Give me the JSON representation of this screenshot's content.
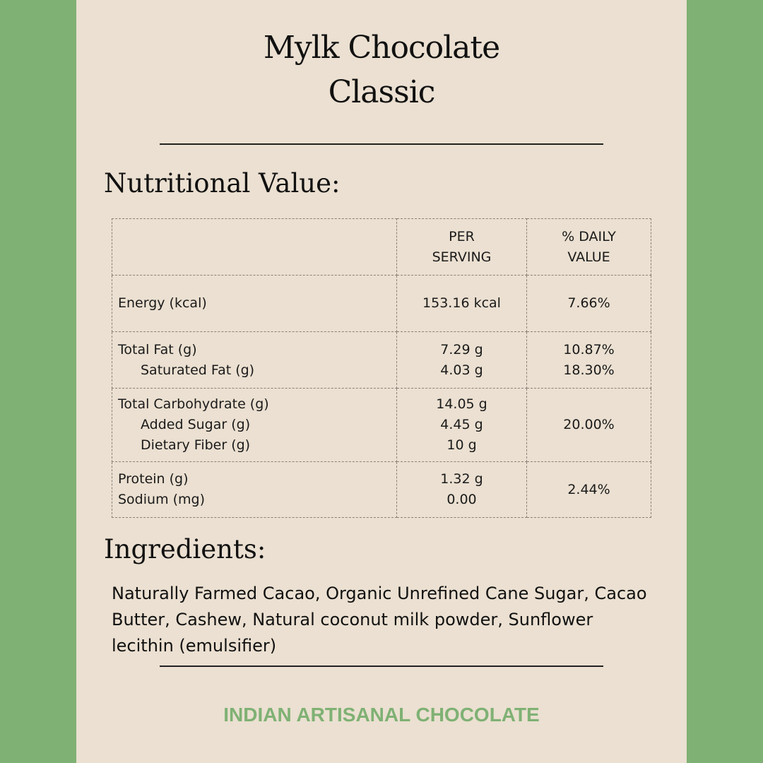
{
  "title": {
    "line1": "Mylk Chocolate",
    "line2": "Classic"
  },
  "nutrition": {
    "heading": "Nutritional Value:",
    "headers": {
      "per_serving": "PER\nSERVING",
      "daily_value": "% DAILY\nVALUE"
    },
    "groups": [
      {
        "items": [
          {
            "name": "Energy (kcal)",
            "value": "153.16 kcal"
          }
        ],
        "daily": "7.66%"
      },
      {
        "items": [
          {
            "name": "Total Fat (g)",
            "value": "7.29 g",
            "daily": "10.87%"
          },
          {
            "name": "Saturated Fat (g)",
            "value": "4.03 g",
            "daily": "18.30%"
          }
        ]
      },
      {
        "items": [
          {
            "name": "Total Carbohydrate (g)",
            "value": "14.05 g"
          },
          {
            "name": "Added Sugar (g)",
            "value": "4.45 g"
          },
          {
            "name": "Dietary Fiber (g)",
            "value": "10 g"
          }
        ],
        "daily": "20.00%"
      },
      {
        "items": [
          {
            "name": "Protein (g)",
            "value": "1.32 g"
          },
          {
            "name": "Sodium (mg)",
            "value": "0.00"
          }
        ],
        "daily": "2.44%"
      }
    ]
  },
  "ingredients": {
    "heading": "Ingredients:",
    "text": "Naturally Farmed Cacao, Organic Unrefined Cane Sugar, Cacao Butter, Cashew, Natural coconut milk powder, Sunflower lecithin (emulsifier)"
  },
  "footer": "INDIAN ARTISANAL CHOCOLATE",
  "colors": {
    "background": "#7fb174",
    "panel": "#ebe0d1",
    "accent": "#7fb174"
  }
}
